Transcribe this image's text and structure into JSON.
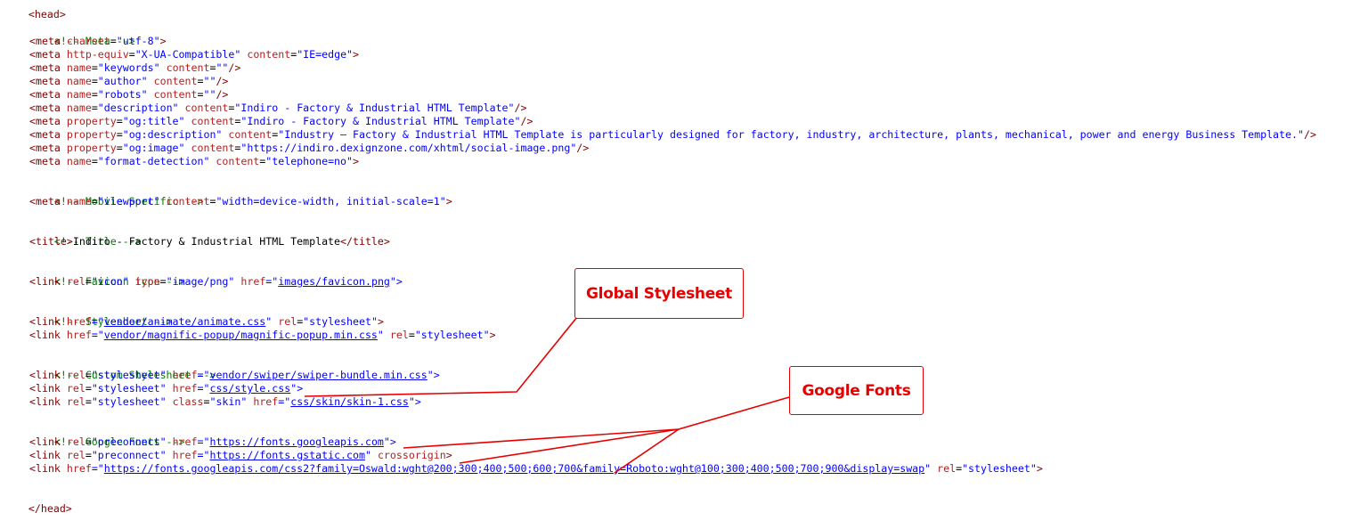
{
  "lines": {
    "l0": "<head>",
    "l1": "<!-- Meta -->",
    "l2": [
      "<meta ",
      "charset",
      "=",
      "\"utf-8\"",
      ">"
    ],
    "meta_compat": [
      "<meta ",
      "http-equiv",
      "=",
      "\"X-UA-Compatible\"",
      " ",
      "content",
      "=",
      "\"IE=edge\"",
      ">"
    ],
    "meta_keywords": [
      "<meta ",
      "name",
      "=",
      "\"keywords\"",
      " ",
      "content",
      "=",
      "\"\"",
      "/>"
    ],
    "meta_author": [
      "<meta ",
      "name",
      "=",
      "\"author\"",
      " ",
      "content",
      "=",
      "\"\"",
      "/>"
    ],
    "meta_robots": [
      "<meta ",
      "name",
      "=",
      "\"robots\"",
      " ",
      "content",
      "=",
      "\"\"",
      "/>"
    ],
    "meta_desc": [
      "<meta ",
      "name",
      "=",
      "\"description\"",
      " ",
      "content",
      "=",
      "\"Indiro - Factory & Industrial HTML Template\"",
      "/>"
    ],
    "meta_ogtitle": [
      "<meta ",
      "property",
      "=",
      "\"og:title\"",
      " ",
      "content",
      "=",
      "\"Indiro - Factory & Industrial HTML Template\"",
      "/>"
    ],
    "meta_ogdesc": [
      "<meta ",
      "property",
      "=",
      "\"og:description\"",
      " ",
      "content",
      "=",
      "\"Industry – Factory & Industrial HTML Template is particularly designed for factory, industry, architecture, plants, mechanical, power and energy Business Template.\"",
      "/>"
    ],
    "meta_ogimage": [
      "<meta ",
      "property",
      "=",
      "\"og:image\"",
      " ",
      "content",
      "=",
      "\"https://indiro.dexignzone.com/xhtml/social-image.png\"",
      "/>"
    ],
    "meta_format": [
      "<meta ",
      "name",
      "=",
      "\"format-detection\"",
      " ",
      "content",
      "=",
      "\"telephone=no\"",
      ">"
    ],
    "cm_mobile": "<!-- Mobile Specific -->",
    "meta_viewport": [
      "<meta ",
      "name",
      "=",
      "\"viewport\"",
      " ",
      "content",
      "=",
      "\"width=device-width, initial-scale=1\"",
      ">"
    ],
    "cm_title": "<!-- Title -->",
    "title_line": [
      "<title>",
      "Indiro - Factory & Industrial HTML Template",
      "</title>"
    ],
    "cm_favicon": "<!-- Favicon icon -->",
    "link_favicon": [
      "<link ",
      "rel",
      "=",
      "\"icon\"",
      " ",
      "type",
      "=",
      "\"image/png\"",
      " ",
      "href",
      "=\"",
      "images/favicon.png",
      "\">"
    ],
    "cm_stylesheet": "<!-- Stylesheet -->",
    "link_animate": [
      "<link ",
      "href",
      "=\"",
      "vendor/animate/animate.css",
      "\" ",
      "rel",
      "=",
      "\"stylesheet\"",
      ">"
    ],
    "link_magnific": [
      "<link ",
      "href",
      "=\"",
      "vendor/magnific-popup/magnific-popup.min.css",
      "\" ",
      "rel",
      "=",
      "\"stylesheet\"",
      ">"
    ],
    "cm_custom": "<!-- Custom Stylesheet -->",
    "link_swiper": [
      "<link ",
      "rel",
      "=",
      "\"stylesheet\"",
      " ",
      "href",
      "=\"",
      "vendor/swiper/swiper-bundle.min.css",
      "\">"
    ],
    "link_style": [
      "<link ",
      "rel",
      "=",
      "\"stylesheet\"",
      " ",
      "href",
      "=\"",
      "css/style.css",
      "\">"
    ],
    "link_skin": [
      "<link ",
      "rel",
      "=",
      "\"stylesheet\"",
      " ",
      "class",
      "=",
      "\"skin\"",
      " ",
      "href",
      "=\"",
      "css/skin/skin-1.css",
      "\">"
    ],
    "cm_gfonts": "<!-- Google Fonts -->",
    "link_preconnect1": [
      "<link ",
      "rel",
      "=",
      "\"preconnect\"",
      " ",
      "href",
      "=\"",
      "https://fonts.googleapis.com",
      "\">"
    ],
    "link_preconnect2": [
      "<link ",
      "rel",
      "=",
      "\"preconnect\"",
      " ",
      "href",
      "=\"",
      "https://fonts.gstatic.com",
      "\" ",
      "crossorigin",
      ">"
    ],
    "link_gfonts": [
      "<link ",
      "href",
      "=\"",
      "https://fonts.googleapis.com/css2?family=Oswald:wght@200;300;400;500;600;700&family=Roboto:wght@100;300;400;500;700;900&display=swap",
      "\" ",
      "rel",
      "=",
      "\"stylesheet\"",
      ">"
    ],
    "l_end": "</head>"
  },
  "annotations": {
    "global_stylesheet": "Global Stylesheet",
    "google_fonts": "Google Fonts"
  },
  "colors": {
    "tag": "#800000",
    "attr": "#b22222",
    "value": "#0000ff",
    "comment": "#008000",
    "annotation": "#e60000"
  }
}
